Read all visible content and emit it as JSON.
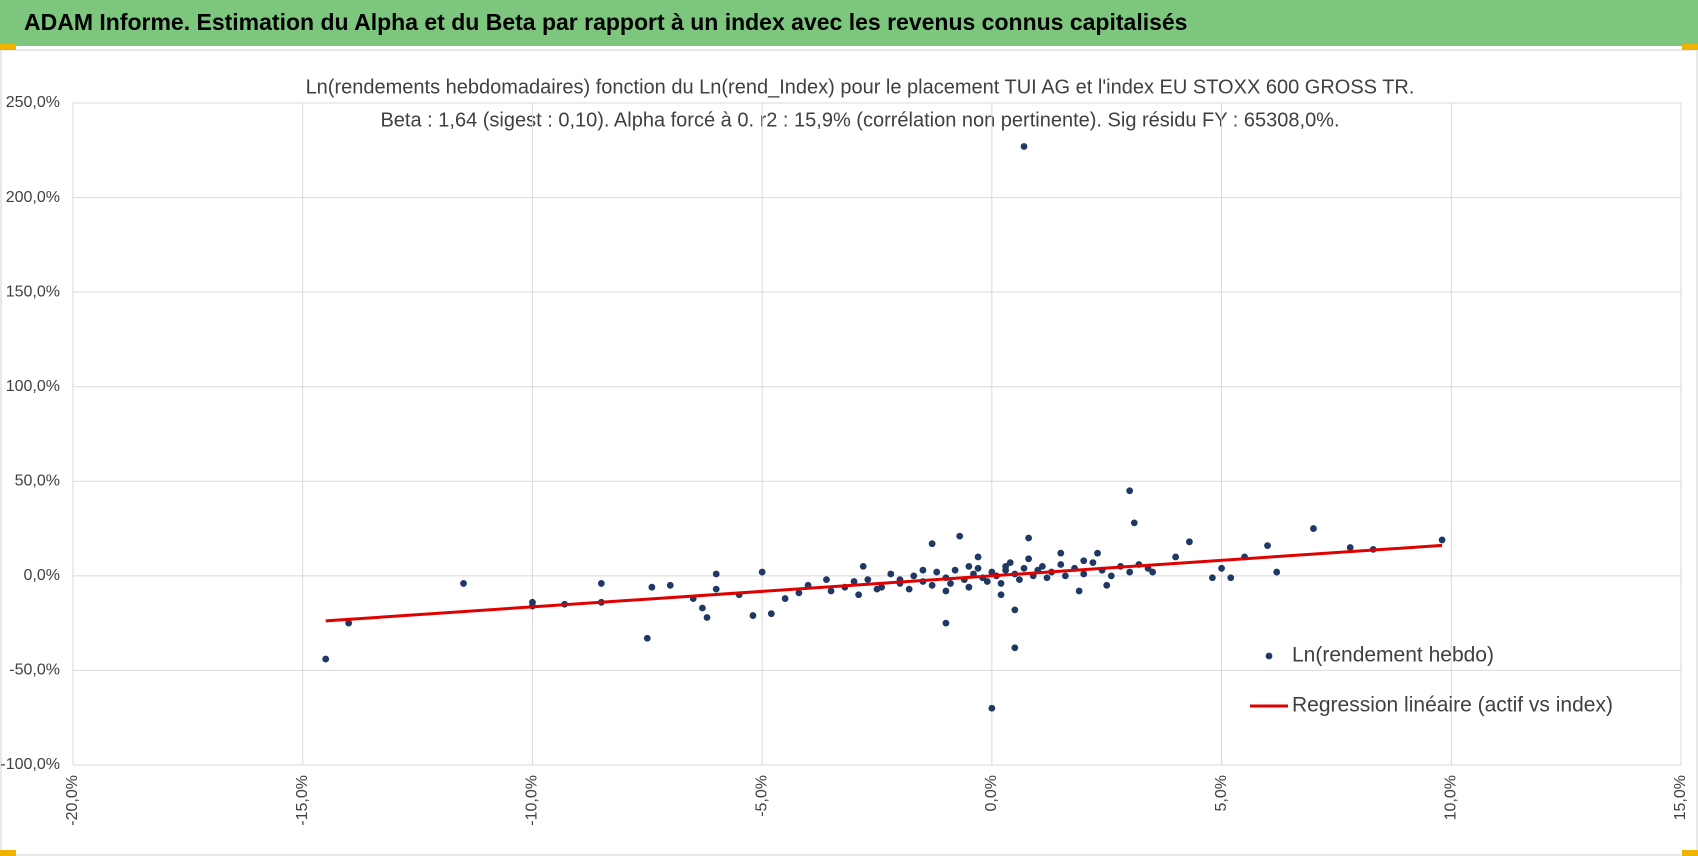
{
  "header": {
    "title": "ADAM Informe. Estimation du Alpha et du Beta par rapport à un index avec les revenus connus capitalisés"
  },
  "chart_data": {
    "type": "scatter",
    "title": "Ln(rendements hebdomadaires) fonction du Ln(rend_Index) pour le placement TUI AG et l'index EU STOXX 600 GROSS TR.",
    "subtitle": "Beta : 1,64 (sigest : 0,10).  Alpha forcé à 0. r2 : 15,9% (corrélation non pertinente). Sig résidu FY : 65308,0%.",
    "xlim": [
      -20,
      15
    ],
    "ylim": [
      -100,
      250
    ],
    "xticks": [
      {
        "value": -20,
        "label": "-20,0%"
      },
      {
        "value": -15,
        "label": "-15,0%"
      },
      {
        "value": -10,
        "label": "-10,0%"
      },
      {
        "value": -5,
        "label": "-5,0%"
      },
      {
        "value": 0,
        "label": "0,0%"
      },
      {
        "value": 5,
        "label": "5,0%"
      },
      {
        "value": 10,
        "label": "10,0%"
      },
      {
        "value": 15,
        "label": "15,0%"
      }
    ],
    "yticks": [
      {
        "value": -100,
        "label": "-100,0%"
      },
      {
        "value": -50,
        "label": "-50,0%"
      },
      {
        "value": 0,
        "label": "0,0%"
      },
      {
        "value": 50,
        "label": "50,0%"
      },
      {
        "value": 100,
        "label": "100,0%"
      },
      {
        "value": 150,
        "label": "150,0%"
      },
      {
        "value": 200,
        "label": "200,0%"
      },
      {
        "value": 250,
        "label": "250,0%"
      }
    ],
    "grid": true,
    "series": [
      {
        "name": "Ln(rendement hebdo)",
        "color": "#203864",
        "x": [
          0.7,
          3.0,
          3.1,
          -14.5,
          -14,
          -11.5,
          -10,
          -10,
          -9.3,
          -8.5,
          -8.5,
          -7.5,
          -7.4,
          -7,
          -6.5,
          -6.3,
          -6.2,
          -6,
          -6,
          -5.5,
          -5.2,
          -5,
          -4.8,
          -4.5,
          -4,
          -3.5,
          -3,
          -2.8,
          -2.5,
          -2,
          -1.5,
          -1.3,
          -1,
          -1,
          -0.7,
          -0.5,
          0,
          0.5,
          0.5,
          0.8,
          0.3,
          1,
          1.5,
          2,
          2.5,
          3.5,
          4,
          4.3,
          4.8,
          5,
          5.2,
          5.5,
          6,
          6.2,
          7,
          7.8,
          8.3,
          9.8,
          -2.7,
          -2.4,
          -2.2,
          -2,
          -1.8,
          -1.7,
          -1.5,
          -1.3,
          -1.2,
          -1,
          -0.9,
          -0.8,
          -0.6,
          -0.5,
          -0.4,
          -0.3,
          -0.2,
          -0.1,
          0,
          0.1,
          0.2,
          0.3,
          0.4,
          0.5,
          0.6,
          0.7,
          0.8,
          0.9,
          1.1,
          1.2,
          1.3,
          1.5,
          1.6,
          1.8,
          2,
          2.2,
          2.4,
          2.6,
          2.8,
          3,
          3.2,
          3.4,
          -3.2,
          -3.6,
          -4.2,
          -2.9,
          0.2,
          1.9,
          2.3,
          -0.3
        ],
        "values": [
          227,
          45,
          28,
          -44,
          -25,
          -4,
          -14,
          -16,
          -15,
          -4,
          -14,
          -33,
          -6,
          -5,
          -12,
          -17,
          -22,
          1,
          -7,
          -10,
          -21,
          2,
          -20,
          -12,
          -5,
          -8,
          -3,
          5,
          -7,
          -2,
          3,
          17,
          -25,
          -8,
          21,
          5,
          -70,
          -38,
          -18,
          20,
          5,
          3,
          12,
          8,
          -5,
          2,
          10,
          18,
          -1,
          4,
          -1,
          10,
          16,
          2,
          25,
          15,
          14,
          19,
          -2,
          -6,
          1,
          -4,
          -7,
          0,
          -3,
          -5,
          2,
          -1,
          -4,
          3,
          -2,
          -6,
          1,
          4,
          -1,
          -3,
          2,
          0,
          -4,
          3,
          7,
          1,
          -2,
          4,
          9,
          0,
          5,
          -1,
          2,
          6,
          0,
          4,
          1,
          7,
          3,
          0,
          5,
          2,
          6,
          4,
          -6,
          -2,
          -9,
          -10,
          -10,
          -8,
          12,
          10
        ]
      },
      {
        "name": "Regression linéaire (actif vs index)",
        "type": "line",
        "color": "#e00000",
        "x": [
          -14.5,
          9.8
        ],
        "values": [
          -23.8,
          16.1
        ]
      }
    ]
  }
}
